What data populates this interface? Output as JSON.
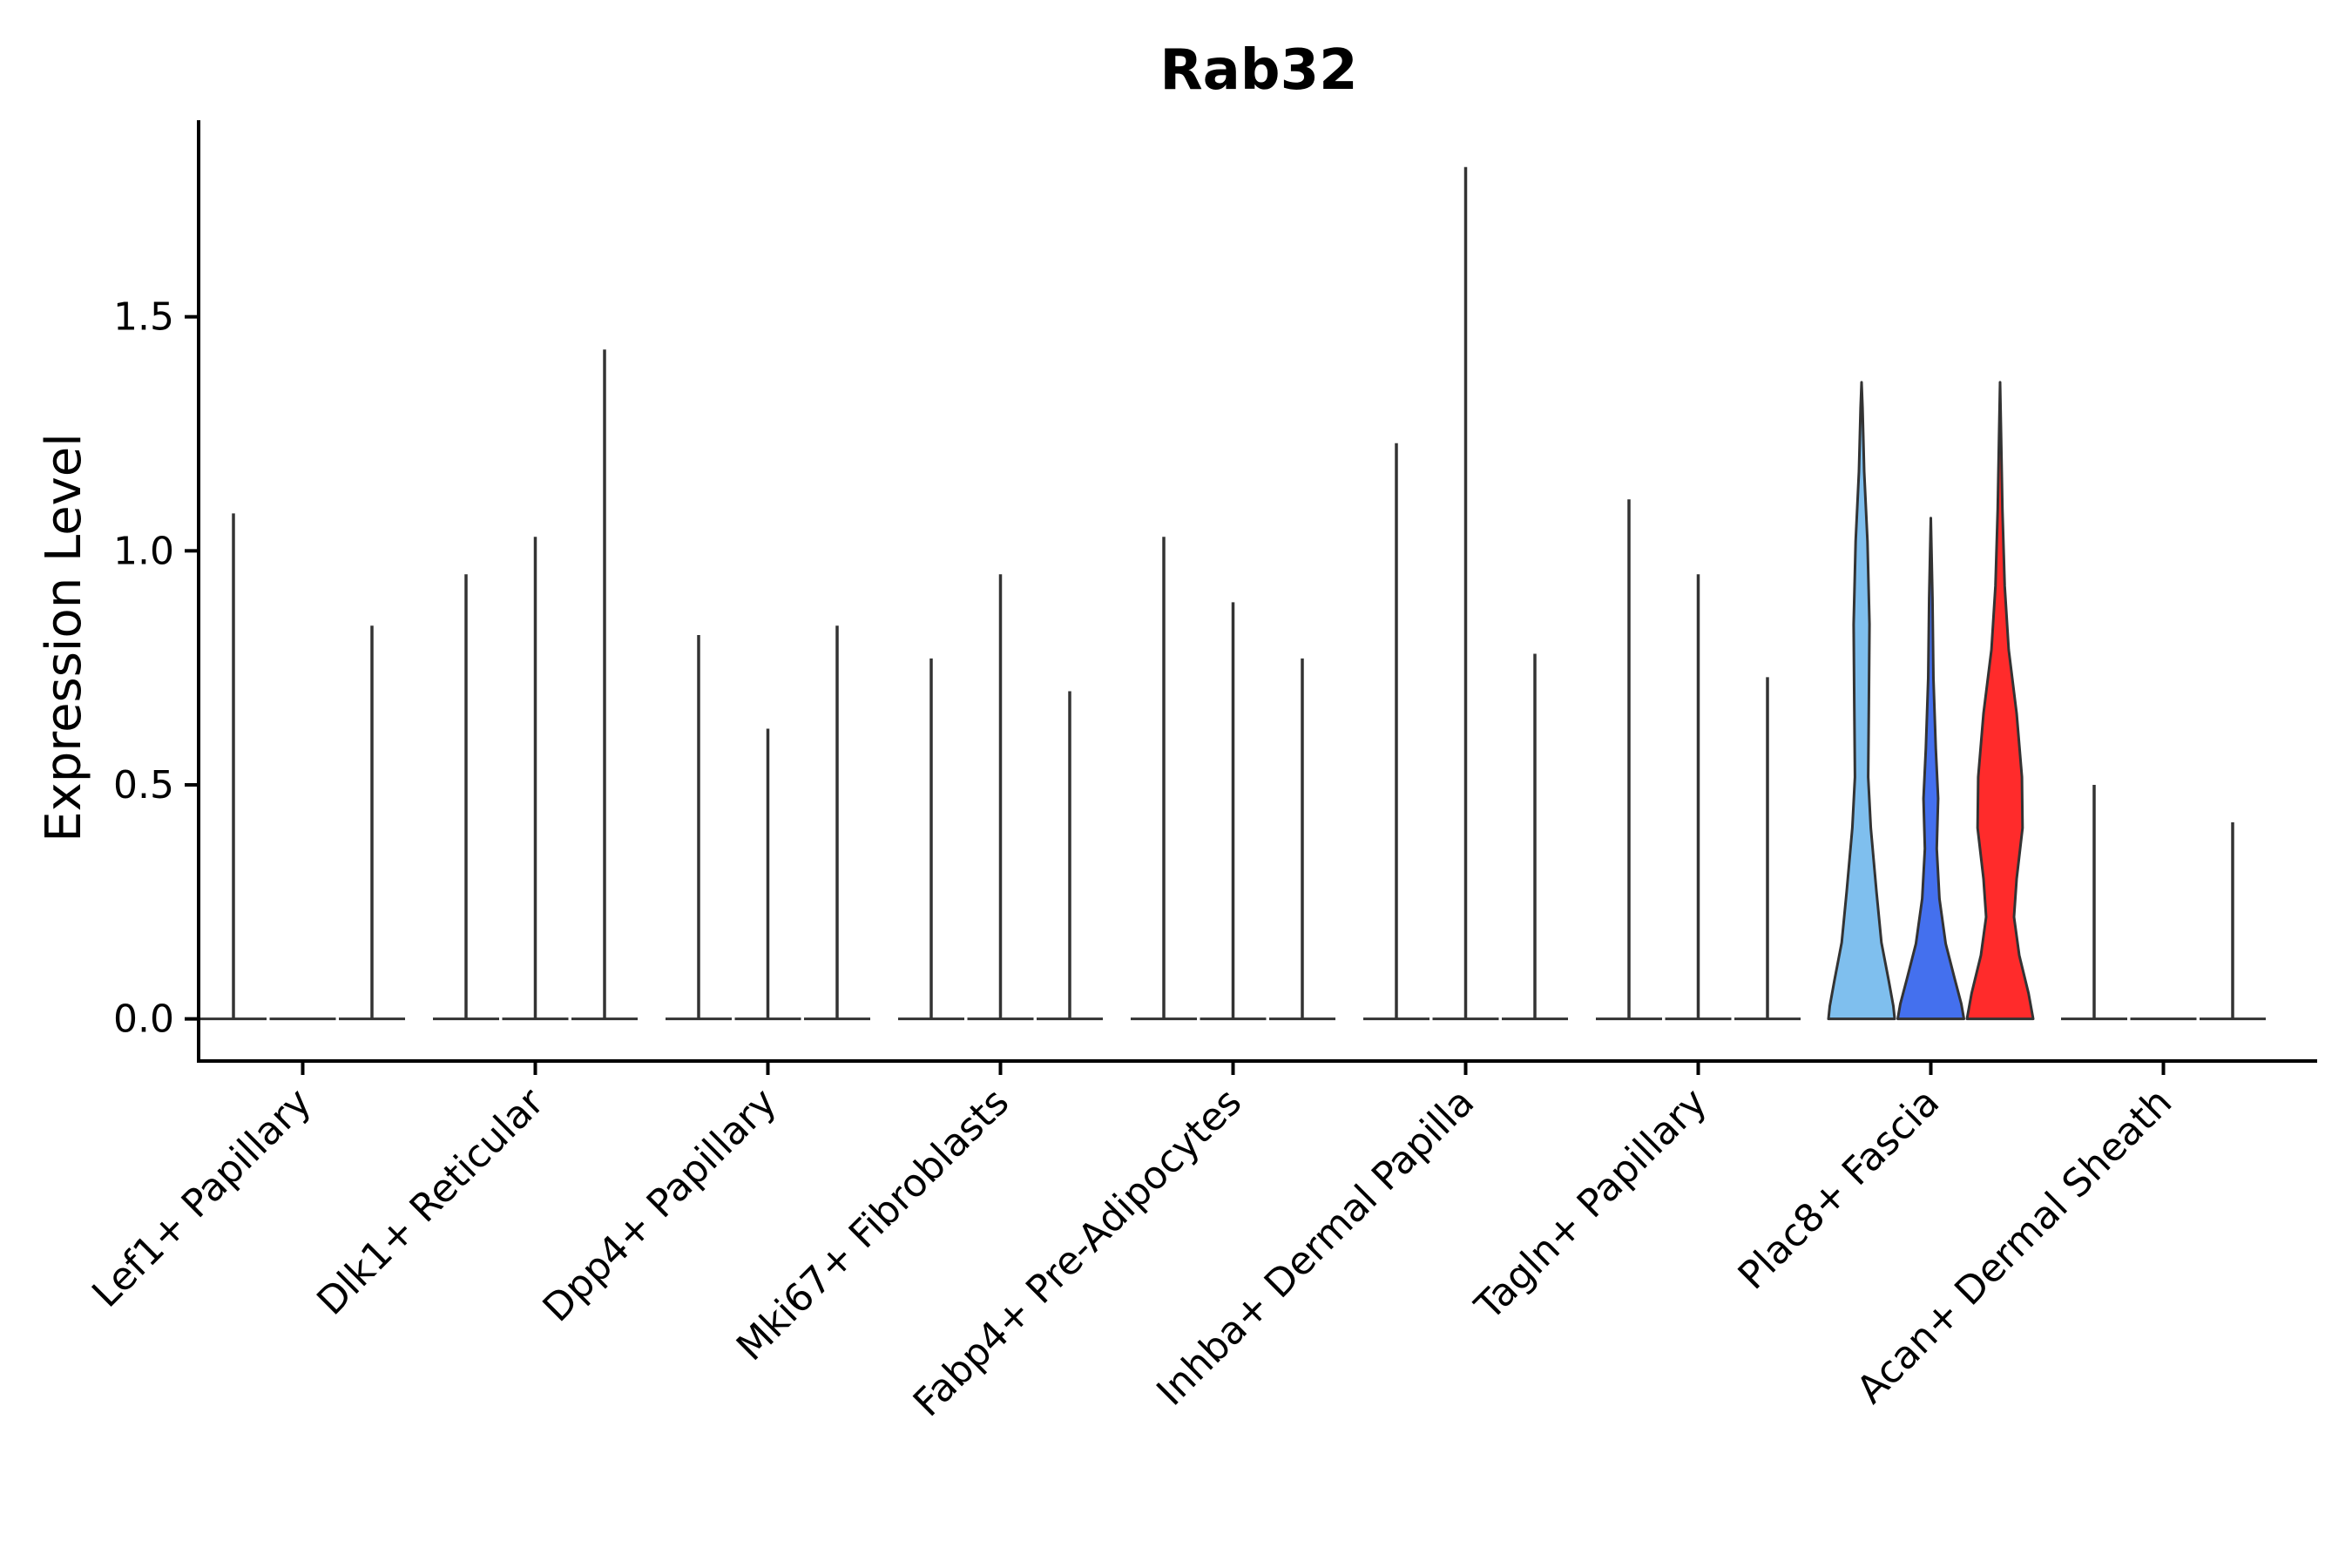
{
  "chart_data": {
    "type": "violin",
    "title": "Rab32",
    "xlabel": "",
    "ylabel": "Expression Level",
    "ylim": [
      -0.09,
      1.92
    ],
    "yticks": [
      0.0,
      0.5,
      1.0,
      1.5
    ],
    "ytick_labels": [
      "0.0",
      "0.5",
      "1.0",
      "1.5"
    ],
    "categories": [
      "Lef1+ Papillary",
      "Dlk1+ Reticular",
      "Dpp4+ Papillary",
      "Mki67+ Fibroblasts",
      "Fabp4+ Pre-Adipocytes",
      "Inhba+ Dermal Papilla",
      "Tagln+ Papillary",
      "Plac8+ Fascia",
      "Acan+ Dermal Sheath"
    ],
    "series": [
      {
        "name": "group-1",
        "color": "#ffffff",
        "max": [
          1.08,
          0.95,
          0.82,
          0.77,
          1.03,
          1.23,
          1.11,
          1.36,
          0.5
        ]
      },
      {
        "name": "group-2",
        "color": "#ffffff",
        "max": [
          0.0,
          1.03,
          0.62,
          0.95,
          0.89,
          1.82,
          0.95,
          1.07,
          0.0
        ]
      },
      {
        "name": "group-3",
        "color": "#ffffff",
        "max": [
          0.84,
          1.43,
          0.84,
          0.7,
          0.77,
          0.78,
          0.73,
          1.36,
          0.42
        ]
      }
    ],
    "highlight_group": {
      "category": "Plac8+ Fascia",
      "colors": [
        "#7fbfee",
        "#4470ee",
        "#ff2b2b"
      ]
    }
  }
}
